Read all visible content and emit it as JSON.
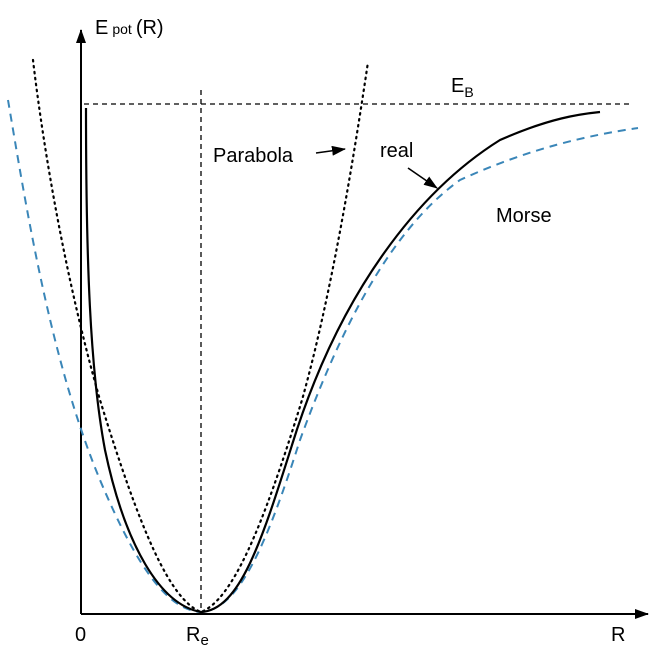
{
  "labels": {
    "y_axis_main": "E",
    "y_axis_sub": "pot",
    "y_axis_arg": "(R)",
    "x_axis": "R",
    "origin": "0",
    "re_main": "R",
    "re_sub": "e",
    "eb_main": "E",
    "eb_sub": "B",
    "parabola": "Parabola",
    "real": "real",
    "morse": "Morse"
  },
  "colors": {
    "axis": "#000000",
    "real_curve": "#000000",
    "parabola_curve": "#000000",
    "morse_curve": "#3a86b8"
  }
}
